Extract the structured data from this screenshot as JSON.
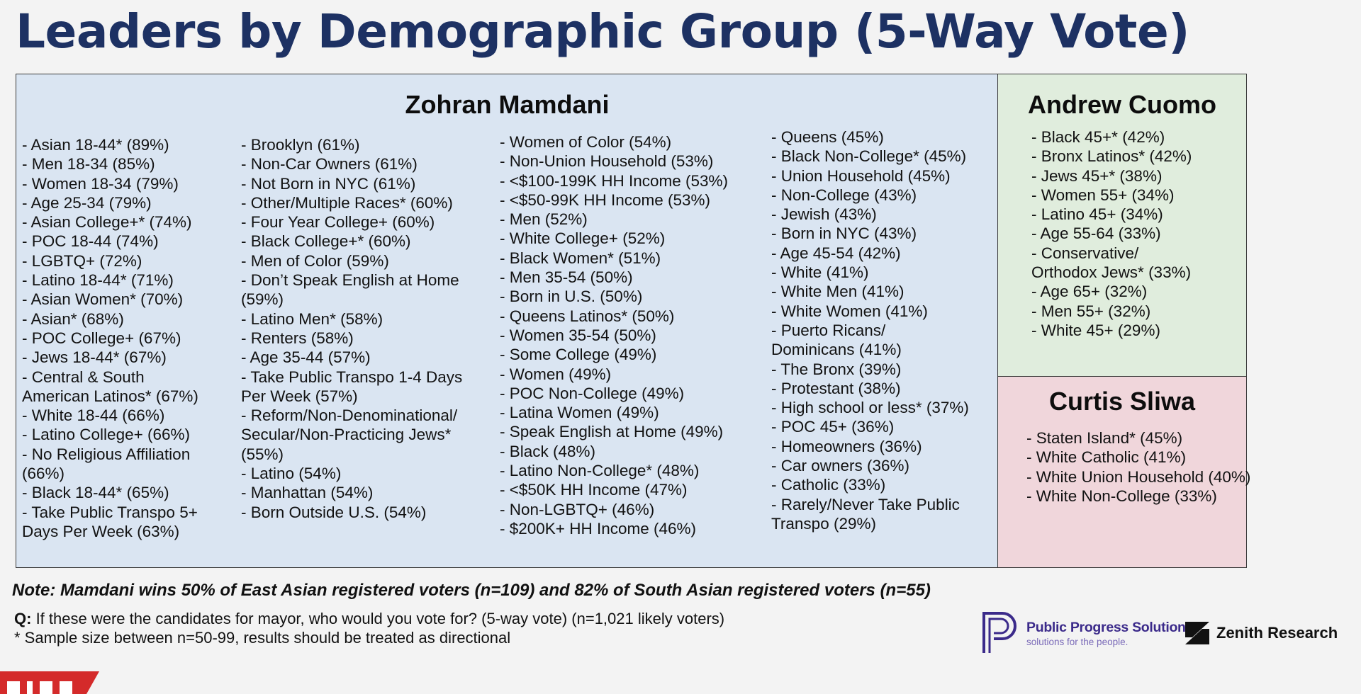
{
  "title": "Leaders by Demographic Group (5-Way Vote)",
  "mamdani": {
    "name": "Zohran Mamdani",
    "columns": [
      [
        "- Asian 18-44* (89%)",
        "- Men 18-34 (85%)",
        "- Women 18-34 (79%)",
        "- Age 25-34 (79%)",
        "- Asian College+* (74%)",
        "- POC 18-44 (74%)",
        "- LGBTQ+ (72%)",
        "- Latino 18-44* (71%)",
        "- Asian Women* (70%)",
        "- Asian* (68%)",
        "- POC College+ (67%)",
        "- Jews 18-44* (67%)",
        "- Central & South\nAmerican Latinos* (67%)",
        "- White 18-44 (66%)",
        "- Latino College+ (66%)",
        "- No Religious Affiliation\n(66%)",
        "- Black 18-44* (65%)",
        "- Take Public Transpo 5+\nDays Per Week (63%)"
      ],
      [
        "- Brooklyn (61%)",
        "- Non-Car Owners (61%)",
        "- Not Born in NYC (61%)",
        "- Other/Multiple Races* (60%)",
        "- Four Year College+ (60%)",
        "- Black College+* (60%)",
        "- Men of Color (59%)",
        "- Don’t Speak English at Home\n(59%)",
        "- Latino Men* (58%)",
        "- Renters (58%)",
        "- Age 35-44 (57%)",
        "- Take Public Transpo 1-4 Days\nPer Week (57%)",
        "- Reform/Non-Denominational/\nSecular/Non-Practicing Jews*\n(55%)",
        "- Latino (54%)",
        "- Manhattan (54%)",
        "- Born Outside U.S. (54%)"
      ],
      [
        "- Women of Color (54%)",
        "- Non-Union Household (53%)",
        "- <$100-199K HH Income (53%)",
        "- <$50-99K HH Income (53%)",
        "- Men (52%)",
        "- White College+ (52%)",
        "- Black Women* (51%)",
        "- Men 35-54 (50%)",
        "- Born in U.S. (50%)",
        "- Queens Latinos* (50%)",
        "- Women 35-54 (50%)",
        "- Some College (49%)",
        "- Women (49%)",
        "- POC Non-College (49%)",
        "- Latina Women (49%)",
        "- Speak English at Home (49%)",
        "- Black (48%)",
        "- Latino Non-College* (48%)",
        "- <$50K HH Income (47%)",
        "- Non-LGBTQ+ (46%)",
        "- $200K+ HH Income (46%)"
      ],
      [
        "- Queens (45%)",
        "- Black Non-College* (45%)",
        "- Union Household (45%)",
        "- Non-College (43%)",
        "- Jewish (43%)",
        "- Born in NYC (43%)",
        "- Age 45-54 (42%)",
        "- White (41%)",
        "- White Men (41%)",
        "- White Women (41%)",
        "- Puerto Ricans/\nDominicans (41%)",
        "- The Bronx (39%)",
        "- Protestant (38%)",
        "- High school or less* (37%)",
        "- POC 45+ (36%)",
        "- Homeowners (36%)",
        "- Car owners (36%)",
        "- Catholic (33%)",
        "- Rarely/Never Take Public\nTranspo (29%)"
      ]
    ]
  },
  "cuomo": {
    "name": "Andrew Cuomo",
    "items": [
      "- Black 45+* (42%)",
      "- Bronx Latinos* (42%)",
      "- Jews 45+* (38%)",
      "- Women 55+ (34%)",
      "- Latino 45+ (34%)",
      "- Age 55-64 (33%)",
      "- Conservative/\nOrthodox Jews* (33%)",
      "- Age 65+ (32%)",
      "- Men 55+ (32%)",
      "- White 45+ (29%)"
    ]
  },
  "sliwa": {
    "name": "Curtis Sliwa",
    "items": [
      "- Staten Island* (45%)",
      "- White Catholic (41%)",
      "- White Union Household (40%)",
      "- White Non-College (33%)"
    ]
  },
  "note": "Note: Mamdani wins 50% of East Asian registered voters (n=109) and 82% of South Asian registered voters (n=55)",
  "question": {
    "label": "Q:",
    "text": " If these were the candidates for mayor, who would you vote for? (5-way vote) (n=1,021 likely voters)"
  },
  "footnote": "* Sample size between n=50-99, results should be treated as directional",
  "logos": {
    "pps_name": "Public Progress Solutions",
    "pps_tagline": "solutions for the people.",
    "zenith_name": "Zenith Research"
  },
  "colors": {
    "title": "#1d3163",
    "mamdani_panel": "#dae5f2",
    "cuomo_panel": "#e0eddd",
    "sliwa_panel": "#f0d6db",
    "pps_purple": "#3b2a8a",
    "banner_red": "#d42a2a"
  }
}
